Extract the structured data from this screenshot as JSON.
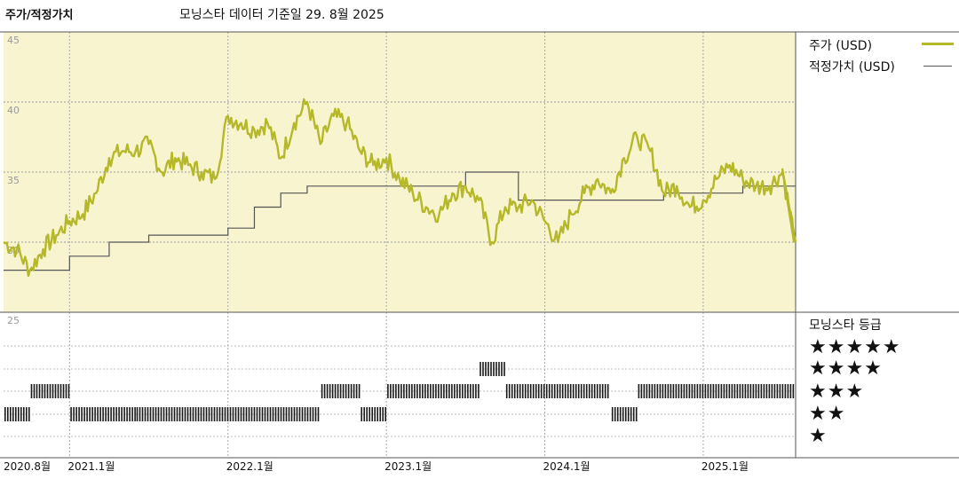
{
  "header": {
    "title": "주가/적정가치",
    "asof": "모닝스타 데이터 기준일 29. 8월 2025"
  },
  "legend": {
    "price_label": "주가 (USD)",
    "fair_label": "적정가치 (USD)",
    "rating_title": "모닝스타 등급",
    "stars": [
      "★★★★★",
      "★★★★",
      "★★★",
      "★★",
      "★"
    ]
  },
  "colors": {
    "price": "#b5b828",
    "fair": "#555555",
    "panel_bg": "#f8f4d0",
    "rating_bar": "#1a1a1a"
  },
  "chart_data": {
    "type": "line",
    "ylim": [
      25,
      45
    ],
    "yticks": [
      "45",
      "40",
      "35",
      "30",
      "25"
    ],
    "x_range": [
      "2020-08",
      "2025-08"
    ],
    "x_tick_labels": [
      "2020.8월",
      "2021.1월",
      "2022.1월",
      "2023.1월",
      "2024.1월",
      "2025.1월"
    ],
    "price_series": [
      {
        "date": "2020-08",
        "value": 30.0
      },
      {
        "date": "2020-09",
        "value": 29.5
      },
      {
        "date": "2020-10",
        "value": 28.0
      },
      {
        "date": "2020-11",
        "value": 29.5
      },
      {
        "date": "2020-12",
        "value": 30.5
      },
      {
        "date": "2021-01",
        "value": 31.5
      },
      {
        "date": "2021-02",
        "value": 32.0
      },
      {
        "date": "2021-03",
        "value": 33.5
      },
      {
        "date": "2021-04",
        "value": 36.0
      },
      {
        "date": "2021-05",
        "value": 36.5
      },
      {
        "date": "2021-06",
        "value": 36.5
      },
      {
        "date": "2021-07",
        "value": 37.0
      },
      {
        "date": "2021-08",
        "value": 35.0
      },
      {
        "date": "2021-09",
        "value": 36.0
      },
      {
        "date": "2021-10",
        "value": 35.5
      },
      {
        "date": "2021-11",
        "value": 35.0
      },
      {
        "date": "2021-12",
        "value": 34.5
      },
      {
        "date": "2022-01",
        "value": 39.0
      },
      {
        "date": "2022-02",
        "value": 38.5
      },
      {
        "date": "2022-03",
        "value": 38.0
      },
      {
        "date": "2022-04",
        "value": 38.5
      },
      {
        "date": "2022-05",
        "value": 36.0
      },
      {
        "date": "2022-06",
        "value": 38.5
      },
      {
        "date": "2022-07",
        "value": 40.0
      },
      {
        "date": "2022-08",
        "value": 37.0
      },
      {
        "date": "2022-09",
        "value": 39.0
      },
      {
        "date": "2022-10",
        "value": 38.5
      },
      {
        "date": "2022-11",
        "value": 36.5
      },
      {
        "date": "2022-12",
        "value": 35.5
      },
      {
        "date": "2023-01",
        "value": 36.0
      },
      {
        "date": "2023-02",
        "value": 34.5
      },
      {
        "date": "2023-03",
        "value": 33.5
      },
      {
        "date": "2023-04",
        "value": 32.5
      },
      {
        "date": "2023-05",
        "value": 32.0
      },
      {
        "date": "2023-06",
        "value": 33.5
      },
      {
        "date": "2023-07",
        "value": 34.0
      },
      {
        "date": "2023-08",
        "value": 33.0
      },
      {
        "date": "2023-09",
        "value": 30.0
      },
      {
        "date": "2023-10",
        "value": 32.5
      },
      {
        "date": "2023-11",
        "value": 32.5
      },
      {
        "date": "2023-12",
        "value": 33.0
      },
      {
        "date": "2024-01",
        "value": 31.5
      },
      {
        "date": "2024-02",
        "value": 30.0
      },
      {
        "date": "2024-03",
        "value": 32.0
      },
      {
        "date": "2024-04",
        "value": 33.5
      },
      {
        "date": "2024-05",
        "value": 34.5
      },
      {
        "date": "2024-06",
        "value": 33.5
      },
      {
        "date": "2024-07",
        "value": 36.0
      },
      {
        "date": "2024-08",
        "value": 37.5
      },
      {
        "date": "2024-09",
        "value": 36.5
      },
      {
        "date": "2024-10",
        "value": 33.5
      },
      {
        "date": "2024-11",
        "value": 34.0
      },
      {
        "date": "2024-12",
        "value": 32.5
      },
      {
        "date": "2025-01",
        "value": 33.0
      },
      {
        "date": "2025-02",
        "value": 34.5
      },
      {
        "date": "2025-03",
        "value": 35.5
      },
      {
        "date": "2025-04",
        "value": 34.5
      },
      {
        "date": "2025-05",
        "value": 34.0
      },
      {
        "date": "2025-06",
        "value": 34.0
      },
      {
        "date": "2025-07",
        "value": 35.0
      },
      {
        "date": "2025-08",
        "value": 30.0
      }
    ],
    "fair_value_series": [
      {
        "date": "2020-08",
        "value": 28.0
      },
      {
        "date": "2021-01",
        "value": 29.0
      },
      {
        "date": "2021-04",
        "value": 30.0
      },
      {
        "date": "2021-07",
        "value": 30.5
      },
      {
        "date": "2022-01",
        "value": 31.0
      },
      {
        "date": "2022-03",
        "value": 32.5
      },
      {
        "date": "2022-05",
        "value": 33.5
      },
      {
        "date": "2022-07",
        "value": 34.0
      },
      {
        "date": "2023-07",
        "value": 35.0
      },
      {
        "date": "2023-11",
        "value": 33.0
      },
      {
        "date": "2024-10",
        "value": 33.5
      },
      {
        "date": "2025-04",
        "value": 34.0
      }
    ],
    "star_ratings": [
      {
        "start": "2020-08",
        "end": "2020-10",
        "stars": 2
      },
      {
        "start": "2020-10",
        "end": "2021-01",
        "stars": 3
      },
      {
        "start": "2021-01",
        "end": "2021-06",
        "stars": 2
      },
      {
        "start": "2021-06",
        "end": "2022-08",
        "stars": 2
      },
      {
        "start": "2022-08",
        "end": "2022-11",
        "stars": 3
      },
      {
        "start": "2022-11",
        "end": "2023-01",
        "stars": 2
      },
      {
        "start": "2023-01",
        "end": "2023-08",
        "stars": 3
      },
      {
        "start": "2023-08",
        "end": "2023-10",
        "stars": 4
      },
      {
        "start": "2023-10",
        "end": "2024-06",
        "stars": 3
      },
      {
        "start": "2024-06",
        "end": "2024-08",
        "stars": 2
      },
      {
        "start": "2024-08",
        "end": "2025-08",
        "stars": 3
      }
    ]
  }
}
